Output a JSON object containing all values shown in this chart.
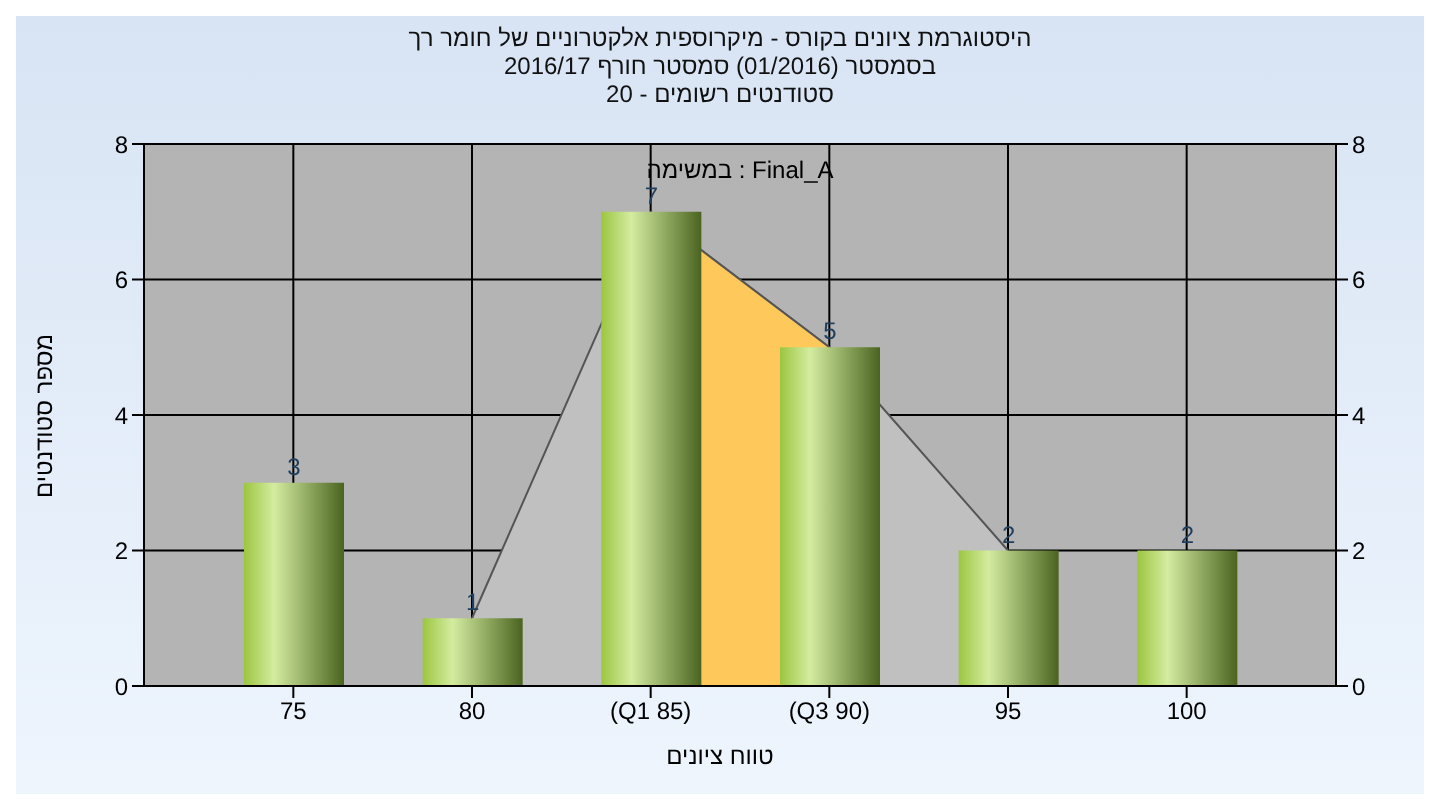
{
  "chart_data": {
    "type": "bar",
    "title": "היסטוגרמת ציונים בקורס - מיקרוספית אלקטרוניים של חומר רך\nבסמסטר  (01/2016)  סמסטר חורף 2016/17\nסטודנטים רשומים - 20",
    "xlabel": "טווח ציונים",
    "ylabel": "מספר סטודנטים",
    "annotations": [
      "Final_A : במשימה"
    ],
    "categories": [
      "75",
      "80",
      "(Q1 85)",
      "(Q3 90)",
      "95",
      "100"
    ],
    "series": [
      {
        "type": "area",
        "color": "#c0c0c0",
        "values": [
          null,
          1,
          7,
          5,
          2,
          null
        ]
      },
      {
        "type": "area",
        "color": "#ffc85a",
        "values": [
          null,
          null,
          7,
          5,
          null,
          null
        ]
      },
      {
        "color": "#9cc640",
        "values": [
          3,
          1,
          7,
          5,
          2,
          2
        ],
        "value_labels": [
          "3",
          "1",
          "7",
          "5",
          "2",
          "2"
        ]
      }
    ],
    "ylim": [
      0,
      8
    ],
    "yticks": [
      0,
      2,
      4,
      6,
      8
    ],
    "y2lim": [
      0,
      8
    ],
    "y2ticks": [
      0,
      2,
      4,
      6,
      8
    ],
    "grid": true
  }
}
